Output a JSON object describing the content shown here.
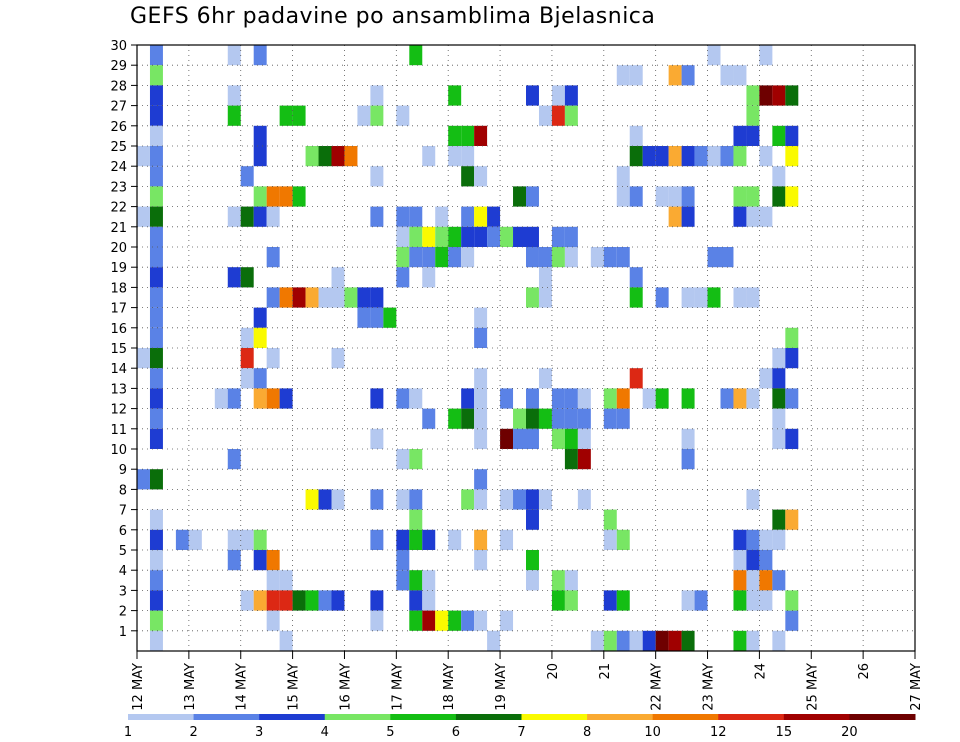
{
  "chart_data": {
    "type": "heatmap",
    "title": "GEFS 6hr padavine po ansamblima Bjelasnica",
    "xlabel": "",
    "ylabel": "",
    "x_tick_labels": [
      "12 MAY",
      "13 MAY",
      "14 MAY",
      "15 MAY",
      "16 MAY",
      "17 MAY",
      "18 MAY",
      "19 MAY",
      "20",
      "21",
      "22 MAY",
      "23 MAY",
      "24",
      "25 MAY",
      "26",
      "27 MAY"
    ],
    "y_tick_labels": [
      "1",
      "2",
      "3",
      "4",
      "5",
      "6",
      "7",
      "8",
      "9",
      "10",
      "11",
      "12",
      "13",
      "14",
      "15",
      "16",
      "17",
      "18",
      "19",
      "20",
      "21",
      "22",
      "23",
      "24",
      "25",
      "26",
      "27",
      "28",
      "29",
      "30"
    ],
    "ylim": [
      0,
      30
    ],
    "x_steps": 61,
    "steps_per_day": 4,
    "grid": true,
    "legend": {
      "placement": "bottom",
      "thresholds": [
        "1",
        "2",
        "3",
        "4",
        "5",
        "6",
        "7",
        "8",
        "10",
        "12",
        "15",
        "20"
      ],
      "colors": [
        "#b4c8f0",
        "#5a82e6",
        "#1e3cd2",
        "#78e664",
        "#14be14",
        "#0a6e0a",
        "#fafa00",
        "#faaa32",
        "#f07800",
        "#dc2814",
        "#a00000",
        "#6e0000"
      ]
    },
    "cells": [
      [
        1,
        30,
        2
      ],
      [
        1,
        29,
        4
      ],
      [
        1,
        28,
        3
      ],
      [
        1,
        27,
        3
      ],
      [
        1,
        26,
        1
      ],
      [
        1,
        25,
        2
      ],
      [
        1,
        24,
        2
      ],
      [
        1,
        23,
        4
      ],
      [
        1,
        22,
        6
      ],
      [
        1,
        21,
        2
      ],
      [
        1,
        20,
        2
      ],
      [
        1,
        19,
        3
      ],
      [
        1,
        18,
        2
      ],
      [
        1,
        17,
        2
      ],
      [
        1,
        16,
        2
      ],
      [
        1,
        15,
        6
      ],
      [
        1,
        14,
        2
      ],
      [
        1,
        13,
        3
      ],
      [
        1,
        12,
        2
      ],
      [
        1,
        11,
        3
      ],
      [
        1,
        9,
        6
      ],
      [
        1,
        7,
        1
      ],
      [
        1,
        6,
        3
      ],
      [
        1,
        5,
        1
      ],
      [
        1,
        4,
        2
      ],
      [
        1,
        3,
        3
      ],
      [
        1,
        2,
        4
      ],
      [
        1,
        1,
        1
      ],
      [
        0,
        25,
        1
      ],
      [
        0,
        22,
        1
      ],
      [
        0,
        15,
        1
      ],
      [
        0,
        9,
        2
      ],
      [
        3,
        6,
        2
      ],
      [
        4,
        6,
        1
      ],
      [
        6,
        13,
        1
      ],
      [
        7,
        30,
        1
      ],
      [
        7,
        28,
        1
      ],
      [
        7,
        27,
        5
      ],
      [
        7,
        22,
        1
      ],
      [
        7,
        19,
        3
      ],
      [
        7,
        13,
        2
      ],
      [
        7,
        10,
        2
      ],
      [
        7,
        6,
        1
      ],
      [
        7,
        5,
        2
      ],
      [
        8,
        19,
        6
      ],
      [
        8,
        22,
        6
      ],
      [
        8,
        24,
        2
      ],
      [
        8,
        16,
        1
      ],
      [
        8,
        15,
        10
      ],
      [
        8,
        14,
        1
      ],
      [
        8,
        6,
        1
      ],
      [
        8,
        3,
        1
      ],
      [
        9,
        30,
        2
      ],
      [
        9,
        26,
        3
      ],
      [
        9,
        25,
        3
      ],
      [
        9,
        23,
        4
      ],
      [
        9,
        22,
        3
      ],
      [
        9,
        17,
        3
      ],
      [
        9,
        16,
        7
      ],
      [
        9,
        14,
        2
      ],
      [
        9,
        13,
        8
      ],
      [
        9,
        6,
        4
      ],
      [
        9,
        5,
        3
      ],
      [
        9,
        3,
        8
      ],
      [
        10,
        23,
        9
      ],
      [
        10,
        22,
        1
      ],
      [
        10,
        20,
        2
      ],
      [
        10,
        18,
        2
      ],
      [
        10,
        15,
        1
      ],
      [
        10,
        13,
        9
      ],
      [
        10,
        5,
        9
      ],
      [
        10,
        4,
        1
      ],
      [
        10,
        3,
        10
      ],
      [
        10,
        2,
        1
      ],
      [
        11,
        27,
        5
      ],
      [
        11,
        23,
        9
      ],
      [
        11,
        18,
        9
      ],
      [
        11,
        13,
        3
      ],
      [
        11,
        4,
        1
      ],
      [
        11,
        3,
        10
      ],
      [
        11,
        1,
        1
      ],
      [
        12,
        27,
        5
      ],
      [
        12,
        23,
        5
      ],
      [
        12,
        18,
        11
      ],
      [
        12,
        3,
        6
      ],
      [
        13,
        25,
        4
      ],
      [
        13,
        18,
        8
      ],
      [
        13,
        8,
        7
      ],
      [
        13,
        3,
        5
      ],
      [
        14,
        25,
        6
      ],
      [
        14,
        18,
        1
      ],
      [
        14,
        8,
        3
      ],
      [
        14,
        3,
        2
      ],
      [
        15,
        25,
        11
      ],
      [
        15,
        19,
        1
      ],
      [
        15,
        18,
        1
      ],
      [
        15,
        15,
        1
      ],
      [
        15,
        8,
        1
      ],
      [
        15,
        3,
        3
      ],
      [
        16,
        25,
        9
      ],
      [
        16,
        18,
        4
      ],
      [
        18,
        28,
        1
      ],
      [
        18,
        27,
        4
      ],
      [
        18,
        24,
        1
      ],
      [
        18,
        22,
        2
      ],
      [
        18,
        18,
        3
      ],
      [
        18,
        17,
        2
      ],
      [
        18,
        13,
        3
      ],
      [
        18,
        11,
        1
      ],
      [
        18,
        8,
        2
      ],
      [
        18,
        6,
        2
      ],
      [
        18,
        3,
        3
      ],
      [
        18,
        2,
        1
      ],
      [
        17,
        27,
        1
      ],
      [
        17,
        18,
        3
      ],
      [
        17,
        17,
        2
      ],
      [
        19,
        17,
        5
      ],
      [
        20,
        27,
        1
      ],
      [
        20,
        22,
        2
      ],
      [
        20,
        21,
        1
      ],
      [
        20,
        20,
        4
      ],
      [
        20,
        19,
        2
      ],
      [
        20,
        13,
        2
      ],
      [
        20,
        10,
        1
      ],
      [
        20,
        8,
        1
      ],
      [
        20,
        6,
        3
      ],
      [
        20,
        5,
        2
      ],
      [
        20,
        4,
        2
      ],
      [
        21,
        30,
        5
      ],
      [
        21,
        22,
        2
      ],
      [
        21,
        21,
        4
      ],
      [
        21,
        20,
        2
      ],
      [
        21,
        13,
        1
      ],
      [
        21,
        10,
        4
      ],
      [
        21,
        8,
        2
      ],
      [
        21,
        7,
        4
      ],
      [
        21,
        6,
        5
      ],
      [
        21,
        4,
        5
      ],
      [
        21,
        3,
        3
      ],
      [
        21,
        2,
        5
      ],
      [
        22,
        25,
        1
      ],
      [
        22,
        21,
        7
      ],
      [
        22,
        20,
        2
      ],
      [
        22,
        19,
        1
      ],
      [
        22,
        12,
        2
      ],
      [
        22,
        6,
        3
      ],
      [
        22,
        4,
        1
      ],
      [
        22,
        3,
        1
      ],
      [
        22,
        2,
        11
      ],
      [
        23,
        22,
        1
      ],
      [
        23,
        21,
        4
      ],
      [
        23,
        20,
        5
      ],
      [
        23,
        2,
        7
      ],
      [
        24,
        28,
        5
      ],
      [
        24,
        26,
        5
      ],
      [
        24,
        25,
        1
      ],
      [
        24,
        21,
        5
      ],
      [
        24,
        20,
        2
      ],
      [
        24,
        12,
        5
      ],
      [
        24,
        6,
        1
      ],
      [
        24,
        2,
        5
      ],
      [
        25,
        26,
        5
      ],
      [
        25,
        25,
        1
      ],
      [
        25,
        24,
        6
      ],
      [
        25,
        22,
        2
      ],
      [
        25,
        21,
        3
      ],
      [
        25,
        20,
        1
      ],
      [
        25,
        13,
        3
      ],
      [
        25,
        12,
        6
      ],
      [
        25,
        8,
        4
      ],
      [
        25,
        2,
        2
      ],
      [
        26,
        26,
        11
      ],
      [
        26,
        24,
        1
      ],
      [
        26,
        22,
        7
      ],
      [
        26,
        21,
        3
      ],
      [
        26,
        17,
        1
      ],
      [
        26,
        16,
        2
      ],
      [
        26,
        14,
        1
      ],
      [
        26,
        13,
        1
      ],
      [
        26,
        12,
        1
      ],
      [
        26,
        11,
        1
      ],
      [
        26,
        9,
        2
      ],
      [
        26,
        8,
        1
      ],
      [
        26,
        6,
        8
      ],
      [
        26,
        5,
        1
      ],
      [
        26,
        2,
        1
      ],
      [
        27,
        22,
        3
      ],
      [
        27,
        21,
        2
      ],
      [
        27,
        1,
        1
      ],
      [
        28,
        21,
        4
      ],
      [
        28,
        13,
        2
      ],
      [
        28,
        11,
        12
      ],
      [
        28,
        8,
        1
      ],
      [
        28,
        6,
        1
      ],
      [
        28,
        2,
        1
      ],
      [
        29,
        23,
        6
      ],
      [
        29,
        21,
        3
      ],
      [
        29,
        12,
        4
      ],
      [
        29,
        11,
        2
      ],
      [
        29,
        8,
        2
      ],
      [
        30,
        28,
        3
      ],
      [
        30,
        23,
        2
      ],
      [
        30,
        21,
        3
      ],
      [
        30,
        20,
        2
      ],
      [
        30,
        18,
        4
      ],
      [
        30,
        13,
        2
      ],
      [
        30,
        12,
        6
      ],
      [
        30,
        11,
        2
      ],
      [
        30,
        8,
        3
      ],
      [
        30,
        7,
        3
      ],
      [
        30,
        5,
        5
      ],
      [
        30,
        4,
        1
      ],
      [
        31,
        27,
        1
      ],
      [
        31,
        20,
        2
      ],
      [
        31,
        19,
        1
      ],
      [
        31,
        18,
        1
      ],
      [
        31,
        14,
        1
      ],
      [
        31,
        12,
        5
      ],
      [
        31,
        8,
        1
      ],
      [
        32,
        28,
        1
      ],
      [
        32,
        27,
        10
      ],
      [
        32,
        21,
        2
      ],
      [
        32,
        20,
        4
      ],
      [
        32,
        13,
        2
      ],
      [
        32,
        12,
        2
      ],
      [
        32,
        11,
        4
      ],
      [
        32,
        4,
        4
      ],
      [
        32,
        3,
        5
      ],
      [
        33,
        28,
        3
      ],
      [
        33,
        27,
        4
      ],
      [
        33,
        21,
        2
      ],
      [
        33,
        20,
        1
      ],
      [
        33,
        13,
        2
      ],
      [
        33,
        12,
        2
      ],
      [
        33,
        11,
        5
      ],
      [
        33,
        10,
        6
      ],
      [
        33,
        4,
        1
      ],
      [
        33,
        3,
        4
      ],
      [
        34,
        13,
        1
      ],
      [
        34,
        12,
        2
      ],
      [
        34,
        11,
        1
      ],
      [
        34,
        10,
        11
      ],
      [
        34,
        8,
        1
      ],
      [
        35,
        20,
        1
      ],
      [
        35,
        1,
        1
      ],
      [
        36,
        20,
        2
      ],
      [
        36,
        13,
        4
      ],
      [
        36,
        12,
        2
      ],
      [
        36,
        7,
        4
      ],
      [
        36,
        6,
        1
      ],
      [
        36,
        3,
        3
      ],
      [
        36,
        1,
        4
      ],
      [
        37,
        29,
        1
      ],
      [
        37,
        24,
        1
      ],
      [
        37,
        23,
        1
      ],
      [
        37,
        20,
        2
      ],
      [
        37,
        13,
        9
      ],
      [
        37,
        12,
        2
      ],
      [
        37,
        6,
        4
      ],
      [
        37,
        3,
        5
      ],
      [
        37,
        1,
        2
      ],
      [
        38,
        29,
        1
      ],
      [
        38,
        26,
        1
      ],
      [
        38,
        25,
        6
      ],
      [
        38,
        23,
        2
      ],
      [
        38,
        19,
        2
      ],
      [
        38,
        18,
        5
      ],
      [
        38,
        14,
        10
      ],
      [
        38,
        1,
        1
      ],
      [
        39,
        25,
        3
      ],
      [
        39,
        13,
        1
      ],
      [
        39,
        1,
        3
      ],
      [
        40,
        25,
        3
      ],
      [
        40,
        23,
        1
      ],
      [
        40,
        18,
        2
      ],
      [
        40,
        13,
        5
      ],
      [
        40,
        1,
        12
      ],
      [
        41,
        29,
        8
      ],
      [
        41,
        25,
        8
      ],
      [
        41,
        23,
        1
      ],
      [
        41,
        22,
        8
      ],
      [
        41,
        1,
        11
      ],
      [
        42,
        29,
        2
      ],
      [
        42,
        25,
        3
      ],
      [
        42,
        23,
        2
      ],
      [
        42,
        22,
        3
      ],
      [
        42,
        18,
        1
      ],
      [
        42,
        13,
        5
      ],
      [
        42,
        11,
        1
      ],
      [
        42,
        10,
        2
      ],
      [
        42,
        3,
        1
      ],
      [
        42,
        1,
        6
      ],
      [
        43,
        25,
        2
      ],
      [
        43,
        18,
        1
      ],
      [
        43,
        3,
        2
      ],
      [
        44,
        30,
        1
      ],
      [
        44,
        25,
        1
      ],
      [
        44,
        20,
        2
      ],
      [
        44,
        18,
        5
      ],
      [
        45,
        29,
        1
      ],
      [
        45,
        25,
        2
      ],
      [
        45,
        20,
        2
      ],
      [
        45,
        13,
        2
      ],
      [
        46,
        29,
        1
      ],
      [
        46,
        26,
        3
      ],
      [
        46,
        25,
        4
      ],
      [
        46,
        23,
        4
      ],
      [
        46,
        22,
        3
      ],
      [
        46,
        18,
        1
      ],
      [
        46,
        13,
        8
      ],
      [
        46,
        6,
        3
      ],
      [
        46,
        5,
        1
      ],
      [
        46,
        4,
        9
      ],
      [
        46,
        3,
        5
      ],
      [
        46,
        1,
        5
      ],
      [
        47,
        28,
        4
      ],
      [
        47,
        27,
        4
      ],
      [
        47,
        26,
        3
      ],
      [
        47,
        23,
        4
      ],
      [
        47,
        22,
        1
      ],
      [
        47,
        18,
        1
      ],
      [
        47,
        13,
        1
      ],
      [
        47,
        8,
        1
      ],
      [
        47,
        6,
        2
      ],
      [
        47,
        5,
        3
      ],
      [
        47,
        4,
        1
      ],
      [
        47,
        3,
        1
      ],
      [
        47,
        1,
        1
      ],
      [
        48,
        30,
        1
      ],
      [
        48,
        28,
        12
      ],
      [
        48,
        25,
        1
      ],
      [
        48,
        22,
        1
      ],
      [
        48,
        14,
        1
      ],
      [
        48,
        6,
        1
      ],
      [
        48,
        5,
        2
      ],
      [
        48,
        4,
        9
      ],
      [
        48,
        3,
        1
      ],
      [
        49,
        28,
        11
      ],
      [
        49,
        26,
        5
      ],
      [
        49,
        24,
        1
      ],
      [
        49,
        23,
        6
      ],
      [
        49,
        15,
        1
      ],
      [
        49,
        14,
        3
      ],
      [
        49,
        13,
        6
      ],
      [
        49,
        12,
        1
      ],
      [
        49,
        11,
        1
      ],
      [
        49,
        7,
        6
      ],
      [
        49,
        6,
        1
      ],
      [
        49,
        4,
        2
      ],
      [
        49,
        1,
        1
      ],
      [
        50,
        28,
        6
      ],
      [
        50,
        26,
        3
      ],
      [
        50,
        25,
        7
      ],
      [
        50,
        23,
        7
      ],
      [
        50,
        16,
        4
      ],
      [
        50,
        15,
        3
      ],
      [
        50,
        13,
        2
      ],
      [
        50,
        11,
        3
      ],
      [
        50,
        7,
        8
      ],
      [
        50,
        2,
        2
      ],
      [
        50,
        3,
        4
      ]
    ]
  }
}
